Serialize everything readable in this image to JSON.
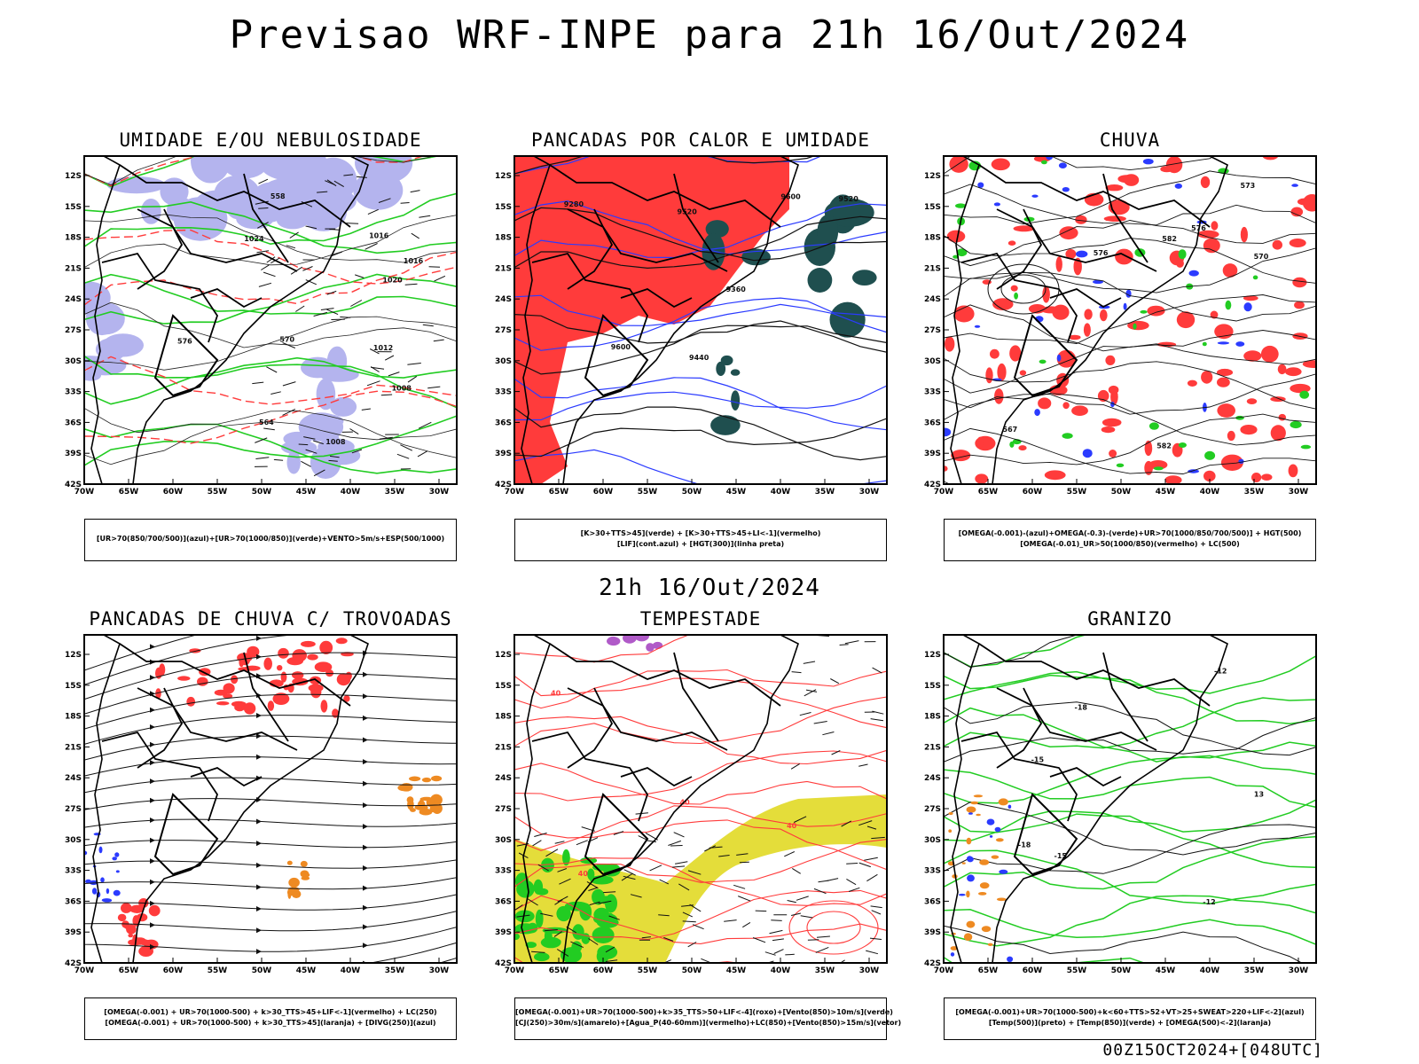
{
  "title": "Previsao WRF-INPE  para 21h 16/Out/2024",
  "subtitle": "21h 16/Out/2024",
  "footer": "00Z15OCT2024+[048UTC]",
  "axes": {
    "lat_labels": [
      "12S",
      "15S",
      "18S",
      "21S",
      "24S",
      "27S",
      "30S",
      "33S",
      "36S",
      "39S",
      "42S"
    ],
    "lon_labels": [
      "70W",
      "65W",
      "60W",
      "55W",
      "50W",
      "45W",
      "40W",
      "35W",
      "30W"
    ]
  },
  "panels": [
    {
      "title": "UMIDADE E/OU NEBULOSIDADE",
      "legend": [
        "[UR>70(850/700/500)](azul)+[UR>70(1000/850)](verde)+VENTO>5m/s+ESP(500/1000)"
      ],
      "labels": [
        "1008",
        "1012",
        "1016",
        "1020",
        "1024",
        "1008",
        "1016",
        "576",
        "570",
        "564",
        "558"
      ]
    },
    {
      "title": "PANCADAS POR CALOR E UMIDADE",
      "legend": [
        "[K>30+TTS>45](verde) + [K>30+TTS>45+LI<-1](vermelho)",
        "[LIF](cont.azul) + [HGT(300)](linha preta)"
      ],
      "labels": [
        "9600",
        "9520",
        "9440",
        "9360",
        "9280",
        "9600",
        "9520"
      ]
    },
    {
      "title": "CHUVA",
      "legend": [
        "[OMEGA(-0.001)-(azul)+OMEGA(-0.3)-(verde)+UR>70(1000/850/700/500)] + HGT(500)",
        "[OMEGA(-0.01)_UR>50(1000/850)(vermelho) + LC(500)"
      ],
      "labels": [
        "582",
        "576",
        "570",
        "573",
        "567",
        "582",
        "576"
      ]
    },
    {
      "title": "PANCADAS DE CHUVA C/ TROVOADAS",
      "legend": [
        "[OMEGA(-0.001) + UR>70(1000-500) + k>30_TTS>45+LIF<-1](vermelho) + LC(250)",
        "[OMEGA(-0.001) + UR>70(1000-500) + k>30_TTS>45](laranja) + [DIVG(250)](azul)"
      ],
      "labels": []
    },
    {
      "title": "TEMPESTADE",
      "legend": [
        "[OMEGA(-0.001)+UR>70(1000-500)+k>35_TTS>50+LIF<-4](roxo)+[Vento(850)>10m/s](verde)",
        "[CJ(250)>30m/s](amarelo)+[Agua_P(40-60mm)](vermelho)+LC(850)+[Vento(850)>15m/s](vetor)"
      ],
      "labels": [
        "40",
        "40",
        "40",
        "40"
      ]
    },
    {
      "title": "GRANIZO",
      "legend": [
        "[OMEGA(-0.001)+UR>70(1000-500)+k<60+TTS>52+VT>25+SWEAT>220+LIF<-2](azul)",
        "[Temp(500)](preto) + [Temp(850)](verde) + [OMEGA(500)<-2](laranja)"
      ],
      "labels": [
        "-12",
        "-15",
        "-18",
        "-12",
        "-15",
        "-18",
        "13"
      ]
    }
  ],
  "colors": {
    "blue_fill": "#b4b4ee",
    "green": "#22cc22",
    "red": "#ff3b3b",
    "dark_teal": "#1f4f4f",
    "blue": "#2b3bff",
    "orange": "#ee8a22",
    "yellow": "#e4dd3a",
    "purple": "#b05ac8"
  }
}
